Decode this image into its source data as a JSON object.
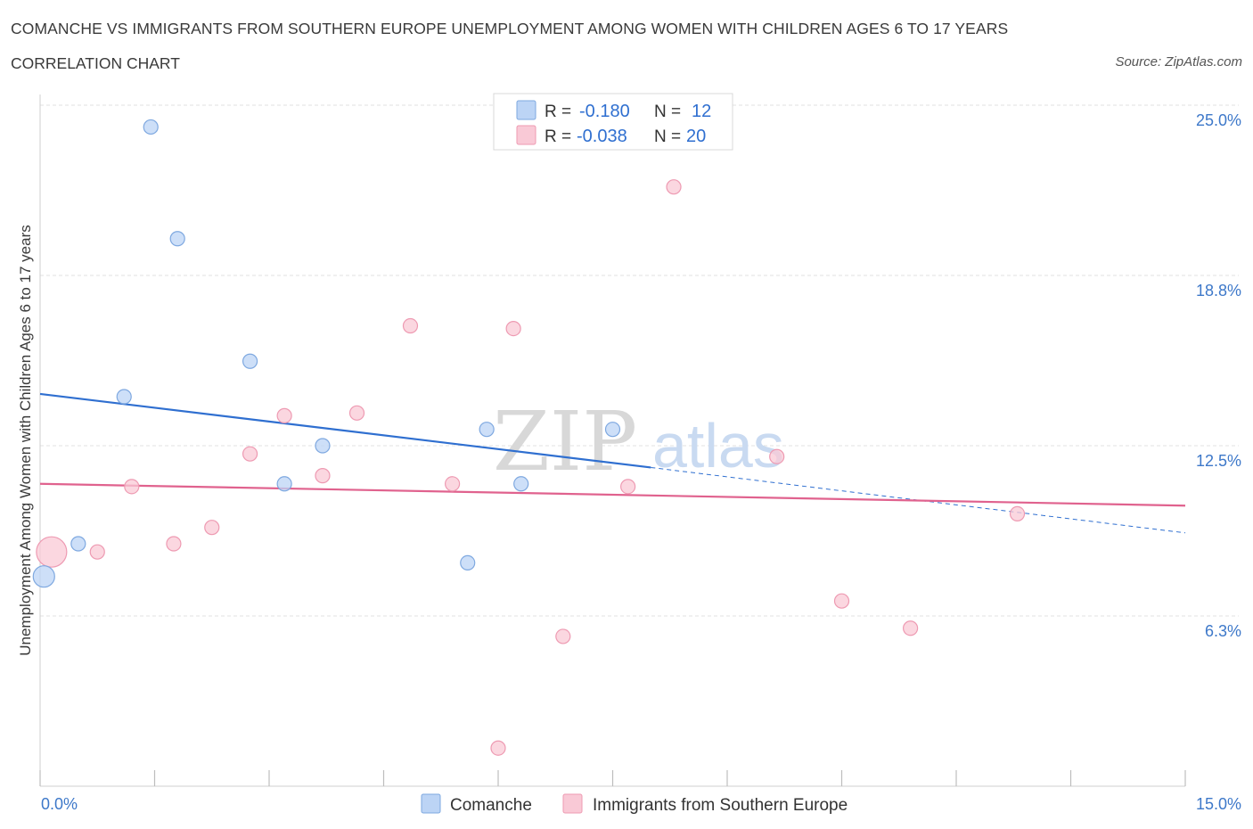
{
  "header": {
    "title": "COMANCHE VS IMMIGRANTS FROM SOUTHERN EUROPE UNEMPLOYMENT AMONG WOMEN WITH CHILDREN AGES 6 TO 17 YEARS",
    "subtitle": "CORRELATION CHART",
    "source": "Source: ZipAtlas.com"
  },
  "watermark": {
    "zip": "ZIP",
    "atlas": "atlas"
  },
  "legend": {
    "rows": [
      {
        "r_label": "R =",
        "r_value": "-0.180",
        "n_label": "N =",
        "n_value": "12"
      },
      {
        "r_label": "R =",
        "r_value": "-0.038",
        "n_label": "N =",
        "n_value": "20"
      }
    ]
  },
  "colors": {
    "comanche_fill": "#bcd4f5",
    "comanche_stroke": "#7ea8e0",
    "comanche_line": "#2f6fd0",
    "immigrants_fill": "#f9c9d6",
    "immigrants_stroke": "#ee9ab2",
    "immigrants_line": "#e0628e",
    "grid": "#e2e2e2",
    "axis_text": "#3d78c9"
  },
  "chart_data": {
    "type": "scatter",
    "title": "COMANCHE VS IMMIGRANTS FROM SOUTHERN EUROPE UNEMPLOYMENT AMONG WOMEN WITH CHILDREN AGES 6 TO 17 YEARS",
    "subtitle": "CORRELATION CHART",
    "xlabel": "",
    "ylabel": "Unemployment Among Women with Children Ages 6 to 17 years",
    "xlim": [
      0,
      15
    ],
    "ylim": [
      0,
      25
    ],
    "x_tick_labels": [
      {
        "value": 0,
        "label": "0.0%"
      },
      {
        "value": 15,
        "label": "15.0%"
      }
    ],
    "y_tick_labels": [
      {
        "value": 6.25,
        "label": "6.3%"
      },
      {
        "value": 12.5,
        "label": "12.5%"
      },
      {
        "value": 18.75,
        "label": "18.8%"
      },
      {
        "value": 25,
        "label": "25.0%"
      }
    ],
    "grid": true,
    "legend_position": "top-center",
    "series": [
      {
        "name": "Comanche",
        "points": [
          {
            "x": 0.05,
            "y": 7.7,
            "large": true
          },
          {
            "x": 0.5,
            "y": 8.9
          },
          {
            "x": 1.1,
            "y": 14.3
          },
          {
            "x": 1.45,
            "y": 24.2
          },
          {
            "x": 1.8,
            "y": 20.1
          },
          {
            "x": 2.75,
            "y": 15.6
          },
          {
            "x": 3.2,
            "y": 11.1
          },
          {
            "x": 3.7,
            "y": 12.5
          },
          {
            "x": 5.6,
            "y": 8.2
          },
          {
            "x": 5.85,
            "y": 13.1
          },
          {
            "x": 6.3,
            "y": 11.1
          },
          {
            "x": 7.5,
            "y": 13.1
          }
        ],
        "trend": {
          "x0": 0,
          "y0": 14.4,
          "x1": 8.0,
          "y1": 11.7,
          "dashed_to_x": 15.0,
          "dashed_to_y": 9.3
        }
      },
      {
        "name": "Immigrants from Southern Europe",
        "points": [
          {
            "x": 0.15,
            "y": 8.6,
            "large": true
          },
          {
            "x": 0.75,
            "y": 8.6
          },
          {
            "x": 1.2,
            "y": 11.0
          },
          {
            "x": 1.75,
            "y": 8.9
          },
          {
            "x": 2.25,
            "y": 9.5
          },
          {
            "x": 2.75,
            "y": 12.2
          },
          {
            "x": 3.2,
            "y": 13.6
          },
          {
            "x": 3.7,
            "y": 11.4
          },
          {
            "x": 4.15,
            "y": 13.7
          },
          {
            "x": 4.85,
            "y": 16.9
          },
          {
            "x": 5.4,
            "y": 11.1
          },
          {
            "x": 6.0,
            "y": 1.4
          },
          {
            "x": 6.2,
            "y": 16.8
          },
          {
            "x": 6.85,
            "y": 5.5
          },
          {
            "x": 7.7,
            "y": 11.0
          },
          {
            "x": 8.3,
            "y": 22.0
          },
          {
            "x": 9.65,
            "y": 12.1
          },
          {
            "x": 10.5,
            "y": 6.8
          },
          {
            "x": 11.4,
            "y": 5.8
          },
          {
            "x": 12.8,
            "y": 10.0
          }
        ],
        "trend": {
          "x0": 0,
          "y0": 11.1,
          "x1": 15.0,
          "y1": 10.3
        }
      }
    ]
  }
}
